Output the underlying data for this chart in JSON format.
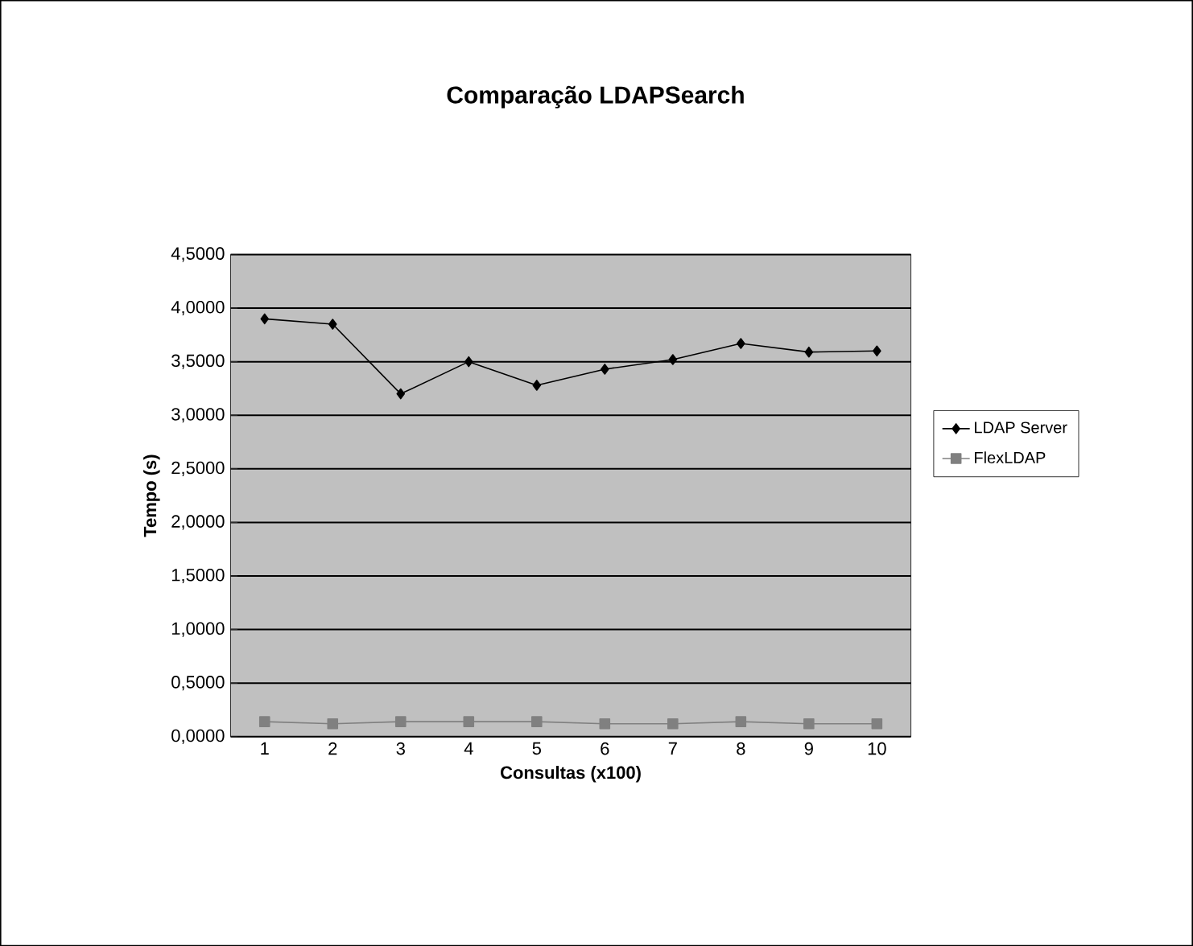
{
  "chart_data": {
    "type": "line",
    "title": "Comparação LDAPSearch",
    "xlabel": "Consultas (x100)",
    "ylabel": "Tempo (s)",
    "categories": [
      "1",
      "2",
      "3",
      "4",
      "5",
      "6",
      "7",
      "8",
      "9",
      "10"
    ],
    "series": [
      {
        "name": "LDAP Server",
        "color": "#000000",
        "marker": "diamond",
        "values": [
          3.9,
          3.85,
          3.2,
          3.5,
          3.28,
          3.43,
          3.52,
          3.67,
          3.59,
          3.6
        ]
      },
      {
        "name": "FlexLDAP",
        "color": "#808080",
        "marker": "square",
        "values": [
          0.14,
          0.12,
          0.14,
          0.14,
          0.14,
          0.12,
          0.12,
          0.14,
          0.12,
          0.12
        ]
      }
    ],
    "ylim": [
      0,
      4.5
    ],
    "yticks": [
      {
        "value": 0,
        "label": "0,0000"
      },
      {
        "value": 0.5,
        "label": "0,5000"
      },
      {
        "value": 1,
        "label": "1,0000"
      },
      {
        "value": 1.5,
        "label": "1,5000"
      },
      {
        "value": 2,
        "label": "2,0000"
      },
      {
        "value": 2.5,
        "label": "2,5000"
      },
      {
        "value": 3,
        "label": "3,0000"
      },
      {
        "value": 3.5,
        "label": "3,5000"
      },
      {
        "value": 4,
        "label": "4,0000"
      },
      {
        "value": 4.5,
        "label": "4,5000"
      }
    ],
    "grid": "y",
    "legend": "right"
  }
}
